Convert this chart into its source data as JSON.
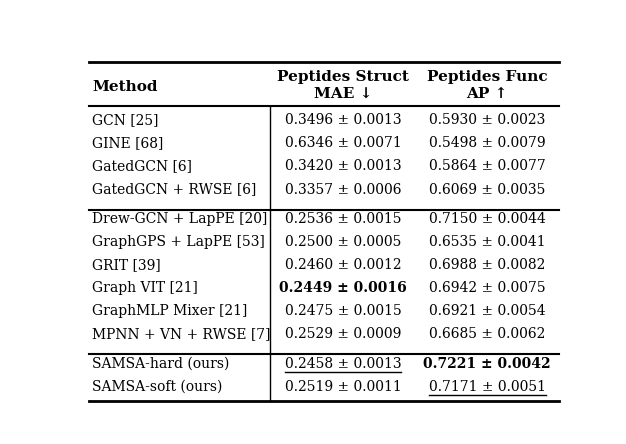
{
  "rows": [
    {
      "method": "GCN [25]",
      "col1": "0.3496 ± 0.0013",
      "col2": "0.5930 ± 0.0023",
      "col1_bold": false,
      "col1_ul": false,
      "col2_bold": false,
      "col2_ul": false,
      "group": 1
    },
    {
      "method": "GINE [68]",
      "col1": "0.6346 ± 0.0071",
      "col2": "0.5498 ± 0.0079",
      "col1_bold": false,
      "col1_ul": false,
      "col2_bold": false,
      "col2_ul": false,
      "group": 1
    },
    {
      "method": "GatedGCN [6]",
      "col1": "0.3420 ± 0.0013",
      "col2": "0.5864 ± 0.0077",
      "col1_bold": false,
      "col1_ul": false,
      "col2_bold": false,
      "col2_ul": false,
      "group": 1
    },
    {
      "method": "GatedGCN + RWSE [6]",
      "col1": "0.3357 ± 0.0006",
      "col2": "0.6069 ± 0.0035",
      "col1_bold": false,
      "col1_ul": false,
      "col2_bold": false,
      "col2_ul": false,
      "group": 1
    },
    {
      "method": "Drew-GCN + LapPE [20]",
      "col1": "0.2536 ± 0.0015",
      "col2": "0.7150 ± 0.0044",
      "col1_bold": false,
      "col1_ul": false,
      "col2_bold": false,
      "col2_ul": false,
      "group": 2
    },
    {
      "method": "GraphGPS + LapPE [53]",
      "col1": "0.2500 ± 0.0005",
      "col2": "0.6535 ± 0.0041",
      "col1_bold": false,
      "col1_ul": false,
      "col2_bold": false,
      "col2_ul": false,
      "group": 2
    },
    {
      "method": "GRIT [39]",
      "col1": "0.2460 ± 0.0012",
      "col2": "0.6988 ± 0.0082",
      "col1_bold": false,
      "col1_ul": false,
      "col2_bold": false,
      "col2_ul": false,
      "group": 2
    },
    {
      "method": "Graph VIT [21]",
      "col1": "0.2449 ± 0.0016",
      "col2": "0.6942 ± 0.0075",
      "col1_bold": true,
      "col1_ul": false,
      "col2_bold": false,
      "col2_ul": false,
      "group": 2
    },
    {
      "method": "GraphMLP Mixer [21]",
      "col1": "0.2475 ± 0.0015",
      "col2": "0.6921 ± 0.0054",
      "col1_bold": false,
      "col1_ul": false,
      "col2_bold": false,
      "col2_ul": false,
      "group": 2
    },
    {
      "method": "MPNN + VN + RWSE [7]",
      "col1": "0.2529 ± 0.0009",
      "col2": "0.6685 ± 0.0062",
      "col1_bold": false,
      "col1_ul": false,
      "col2_bold": false,
      "col2_ul": false,
      "group": 2
    },
    {
      "method": "SAMSA-hard (ours)",
      "col1": "0.2458 ± 0.0013",
      "col2": "0.7221 ± 0.0042",
      "col1_bold": false,
      "col1_ul": true,
      "col2_bold": true,
      "col2_ul": false,
      "group": 3
    },
    {
      "method": "SAMSA-soft (ours)",
      "col1": "0.2519 ± 0.0011",
      "col2": "0.7171 ± 0.0051",
      "col1_bold": false,
      "col1_ul": false,
      "col2_bold": false,
      "col2_ul": true,
      "group": 3
    }
  ],
  "header_line1": [
    "",
    "Peptides Struct",
    "Peptides Func"
  ],
  "header_line2": [
    "Method",
    "MAE ↓",
    "AP ↑"
  ],
  "fig_width": 6.26,
  "fig_height": 4.44,
  "dpi": 100,
  "font_size": 10.0,
  "header_font_size": 11.0,
  "bg_color": "#ffffff",
  "text_color": "#000000"
}
